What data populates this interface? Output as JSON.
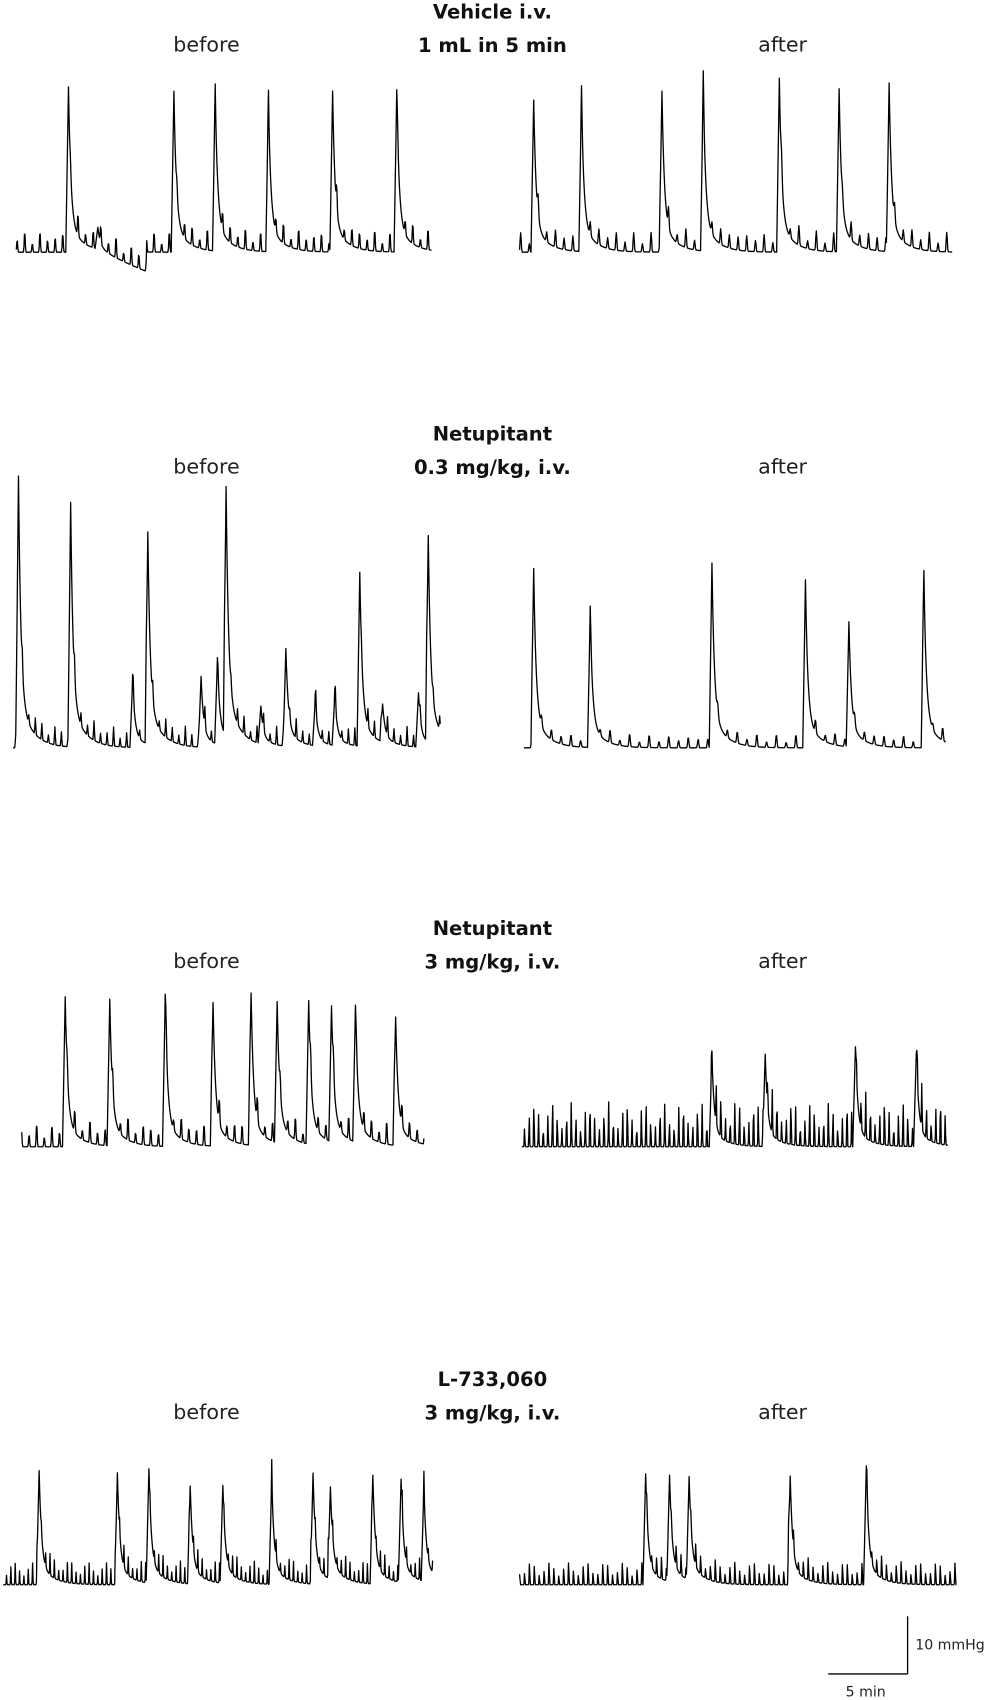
{
  "panels": [
    {
      "title": [
        "Vehicle i.v.",
        "1 mL in 5 min"
      ],
      "before": "before",
      "after": "after"
    },
    {
      "title": [
        "Netupitant",
        "0.3 mg/kg, i.v."
      ],
      "before": "before",
      "after": "after"
    },
    {
      "title": [
        "Netupitant",
        "3 mg/kg, i.v."
      ],
      "before": "before",
      "after": "after"
    },
    {
      "title": [
        "L-733,060",
        "3 mg/kg, i.v."
      ],
      "before": "before",
      "after": "after"
    }
  ],
  "scale_bar": {
    "vertical": "10 mmHg",
    "horizontal": "5 min"
  }
}
